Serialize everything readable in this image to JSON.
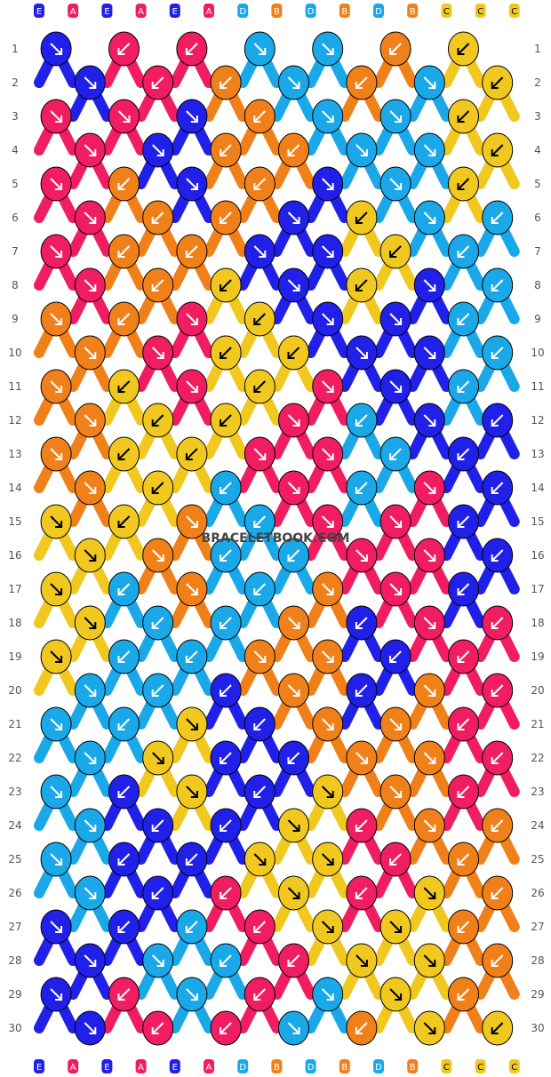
{
  "colors": {
    "E": "#2020E8",
    "A": "#F01D60",
    "D": "#1AA8E8",
    "B": "#F0801A",
    "C": "#F0C820"
  },
  "watermark": "BRACELETBOOK.COM",
  "strands_top": [
    "E",
    "A",
    "E",
    "A",
    "E",
    "A",
    "D",
    "B",
    "D",
    "B",
    "D",
    "B",
    "C",
    "C",
    "C"
  ],
  "strands_bottom": [
    "E",
    "A",
    "E",
    "A",
    "E",
    "A",
    "D",
    "B",
    "D",
    "B",
    "D",
    "B",
    "C",
    "C",
    "C"
  ],
  "row_labels": [
    "1",
    "2",
    "3",
    "4",
    "5",
    "6",
    "7",
    "8",
    "9",
    "10",
    "11",
    "12",
    "13",
    "14",
    "15",
    "16",
    "17",
    "18",
    "19",
    "20",
    "21",
    "22",
    "23",
    "24",
    "25",
    "26",
    "27",
    "28",
    "29",
    "30"
  ],
  "rows": [
    [
      "E:dr",
      "A:dl",
      "A:dl",
      "D:dr",
      "D:dr",
      "B:dl",
      "C:dl"
    ],
    [
      "E:dr",
      "A:dl",
      "B:dl",
      "D:dr",
      "B:dl",
      "D:dr",
      "C:dl"
    ],
    [
      "A:dr",
      "A:dr",
      "E:dr",
      "B:dl",
      "D:dr",
      "D:dr",
      "C:dl"
    ],
    [
      "A:dr",
      "E:dr",
      "B:dl",
      "B:dl",
      "D:dr",
      "D:dr",
      "C:dl"
    ],
    [
      "A:dr",
      "B:dl",
      "E:dr",
      "B:dl",
      "E:dr",
      "D:dr",
      "C:dl"
    ],
    [
      "A:dr",
      "B:dl",
      "B:dl",
      "E:dr",
      "C:dl",
      "D:dr",
      "D:dl"
    ],
    [
      "A:dr",
      "B:dl",
      "B:dl",
      "E:dr",
      "E:dr",
      "C:dl",
      "D:dl"
    ],
    [
      "A:dr",
      "B:dl",
      "C:dl",
      "E:dr",
      "C:dl",
      "E:dr",
      "D:dl"
    ],
    [
      "B:dr",
      "B:dl",
      "A:dr",
      "C:dl",
      "E:dr",
      "E:dr",
      "D:dl"
    ],
    [
      "B:dr",
      "A:dr",
      "C:dl",
      "C:dl",
      "E:dr",
      "E:dr",
      "D:dl"
    ],
    [
      "B:dr",
      "C:dl",
      "A:dr",
      "C:dl",
      "A:dr",
      "E:dr",
      "D:dl"
    ],
    [
      "B:dr",
      "C:dl",
      "C:dl",
      "A:dr",
      "D:dl",
      "E:dr",
      "E:dl"
    ],
    [
      "B:dr",
      "C:dl",
      "C:dl",
      "A:dr",
      "A:dr",
      "D:dl",
      "E:dl"
    ],
    [
      "B:dr",
      "C:dl",
      "D:dl",
      "A:dr",
      "D:dl",
      "A:dr",
      "E:dl"
    ],
    [
      "C:dr",
      "C:dl",
      "B:dr",
      "D:dl",
      "A:dr",
      "A:dr",
      "E:dl"
    ],
    [
      "C:dr",
      "B:dr",
      "D:dl",
      "D:dl",
      "A:dr",
      "A:dr",
      "E:dl"
    ],
    [
      "C:dr",
      "D:dl",
      "B:dr",
      "D:dl",
      "B:dr",
      "A:dr",
      "E:dl"
    ],
    [
      "C:dr",
      "D:dl",
      "D:dl",
      "B:dr",
      "E:dl",
      "A:dr",
      "A:dl"
    ],
    [
      "C:dr",
      "D:dl",
      "D:dl",
      "B:dr",
      "B:dr",
      "E:dl",
      "A:dl"
    ],
    [
      "D:dr",
      "D:dl",
      "E:dl",
      "B:dr",
      "E:dl",
      "B:dr",
      "A:dl"
    ],
    [
      "D:dr",
      "D:dl",
      "C:dr",
      "E:dl",
      "B:dr",
      "B:dr",
      "A:dl"
    ],
    [
      "D:dr",
      "C:dr",
      "E:dl",
      "E:dl",
      "B:dr",
      "B:dr",
      "A:dl"
    ],
    [
      "D:dr",
      "E:dl",
      "C:dr",
      "E:dl",
      "C:dr",
      "B:dr",
      "A:dl"
    ],
    [
      "D:dr",
      "E:dl",
      "E:dl",
      "C:dr",
      "A:dl",
      "B:dr",
      "B:dl"
    ],
    [
      "D:dr",
      "E:dl",
      "E:dl",
      "C:dr",
      "C:dr",
      "A:dl",
      "B:dl"
    ],
    [
      "D:dr",
      "E:dl",
      "A:dl",
      "C:dr",
      "A:dl",
      "C:dr",
      "B:dl"
    ],
    [
      "E:dr",
      "E:dl",
      "D:dl",
      "A:dl",
      "C:dr",
      "C:dr",
      "B:dl"
    ],
    [
      "E:dr",
      "D:dr",
      "D:dl",
      "A:dl",
      "C:dr",
      "C:dr",
      "B:dl"
    ],
    [
      "E:dr",
      "A:dl",
      "D:dr",
      "A:dl",
      "D:dr",
      "C:dr",
      "B:dl"
    ],
    [
      "E:dr",
      "A:dl",
      "A:dl",
      "D:dr",
      "B:dl",
      "C:dr",
      "C:dl"
    ]
  ]
}
